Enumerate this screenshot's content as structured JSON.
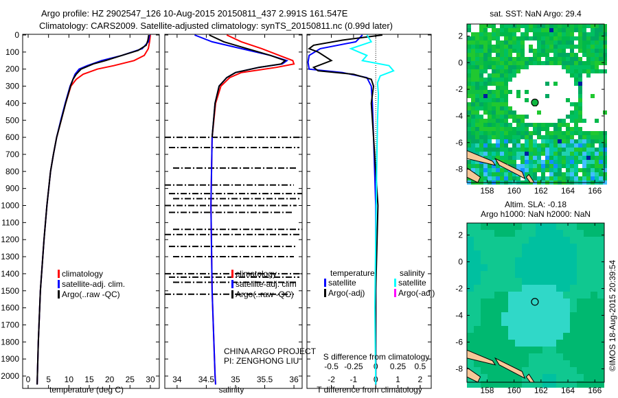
{
  "title_line1": "Argo profile: HZ 2902547_126 10-Aug-2015 20150811_437 2.991S 161.547E",
  "title_line2": "Climatology: CARS2009. Satellite-adjusted climatology: synTS_20150811.nc (0.99d later)",
  "credit": "©IMOS 18-Aug-2015 20:39:54",
  "project_line1": "CHINA ARGO PROJECT",
  "project_line2": "PI: ZENGHONG LIU",
  "colors": {
    "climatology": "#ff0000",
    "satellite": "#0000ff",
    "argo": "#000000",
    "sal_satellite": "#00ffff",
    "sal_argo": "#ff00ff"
  },
  "chart_data": [
    {
      "type": "line",
      "name": "temperature-profile",
      "xlabel": "temperature (deg C)",
      "ylabel": "depth",
      "xticks": [
        "0",
        "5",
        "10",
        "15",
        "20",
        "25",
        "30"
      ],
      "xtick_values": [
        0,
        5,
        10,
        15,
        20,
        25,
        30
      ],
      "yticks": [
        "0",
        "100",
        "200",
        "300",
        "400",
        "500",
        "600",
        "700",
        "800",
        "900",
        "1000",
        "1100",
        "1200",
        "1300",
        "1400",
        "1500",
        "1600",
        "1700",
        "1800",
        "1900",
        "2000"
      ],
      "ytick_values": [
        0,
        100,
        200,
        300,
        400,
        500,
        600,
        700,
        800,
        900,
        1000,
        1100,
        1200,
        1300,
        1400,
        1500,
        1600,
        1700,
        1800,
        1900,
        2000
      ],
      "xlim": [
        -1.35,
        32.2
      ],
      "ylim": [
        2072,
        0
      ],
      "legend": [
        "climatology",
        "satellite-adj. clim.",
        "Argo(..raw -QC)"
      ],
      "legend_placement": "lower-left",
      "series": [
        {
          "name": "climatology",
          "color": "#ff0000",
          "depth": [
            0,
            40,
            80,
            120,
            150,
            180,
            200,
            230,
            260,
            300,
            400,
            500,
            600,
            700,
            800,
            1000,
            1200,
            1500,
            1800,
            2050
          ],
          "values": [
            30,
            29.8,
            29.5,
            28.5,
            26,
            21,
            17,
            13.5,
            11.8,
            10.5,
            9.2,
            8.1,
            7,
            6.2,
            5.5,
            4.6,
            3.9,
            3,
            2.5,
            2.2
          ]
        },
        {
          "name": "satellite-adj. clim.",
          "color": "#0000ff",
          "depth": [
            0,
            40,
            80,
            120,
            150,
            180,
            200,
            230,
            260,
            300,
            400,
            500,
            600,
            700,
            800,
            1000,
            1200,
            1500,
            1800,
            2050
          ],
          "values": [
            29.8,
            29.5,
            28,
            23,
            18,
            14.5,
            12.5,
            11.5,
            11,
            10.3,
            9.1,
            8,
            7,
            6.2,
            5.5,
            4.6,
            3.9,
            3,
            2.5,
            2.2
          ]
        },
        {
          "name": "Argo(..raw -QC)",
          "color": "#000000",
          "depth": [
            0,
            30,
            60,
            90,
            120,
            150,
            170,
            200,
            230,
            260,
            300,
            400,
            500,
            600,
            700,
            800,
            1000,
            1200,
            1500,
            1800,
            2050
          ],
          "values": [
            29.6,
            29.4,
            29,
            27,
            23,
            19,
            16,
            13,
            11.8,
            11,
            10.4,
            9.2,
            8.1,
            7,
            6.2,
            5.5,
            4.6,
            3.9,
            3,
            2.5,
            2.2
          ]
        }
      ]
    },
    {
      "type": "line",
      "name": "salinity-profile",
      "xlabel": "salinity",
      "xticks": [
        "34",
        "34.5",
        "35",
        "35.5",
        "36"
      ],
      "xtick_values": [
        34,
        34.5,
        35,
        35.5,
        36
      ],
      "xlim": [
        33.79,
        36.14
      ],
      "ylim": [
        2072,
        0
      ],
      "legend": [
        "climatology",
        "satellite-adj. clim",
        "Argo(..raw -QC)"
      ],
      "legend_placement": "lower-left",
      "series": [
        {
          "name": "climatology",
          "color": "#ff0000",
          "depth": [
            0,
            40,
            80,
            120,
            150,
            170,
            190,
            220,
            250,
            300,
            400,
            600,
            1000,
            1500,
            2000,
            2050
          ],
          "values": [
            34.85,
            35.1,
            35.45,
            35.75,
            35.98,
            36.0,
            35.7,
            35.1,
            34.9,
            34.75,
            34.66,
            34.6,
            34.58,
            34.6,
            34.65,
            34.66
          ]
        },
        {
          "name": "satellite-adj. clim",
          "color": "#0000ff",
          "depth": [
            0,
            40,
            80,
            120,
            150,
            170,
            190,
            220,
            250,
            300,
            400,
            600,
            1000,
            1500,
            2000,
            2050
          ],
          "values": [
            34.3,
            34.6,
            35.1,
            35.6,
            35.88,
            35.8,
            35.4,
            35.0,
            34.85,
            34.72,
            34.65,
            34.6,
            34.58,
            34.6,
            34.65,
            34.66
          ]
        },
        {
          "name": "Argo(..raw -QC)",
          "color": "#000000",
          "depth": [
            0,
            40,
            80,
            120,
            150,
            170,
            190,
            220,
            250,
            300,
            400,
            600
          ],
          "values": [
            34.55,
            34.8,
            35.2,
            35.6,
            35.85,
            35.78,
            35.4,
            35.0,
            34.85,
            34.72,
            34.65,
            34.6
          ]
        }
      ],
      "argo_raw_flagged_depths": [
        600,
        660,
        780,
        880,
        930,
        960,
        1000,
        1040,
        1140,
        1170,
        1240,
        1300,
        1400,
        1420,
        1450,
        1520
      ]
    },
    {
      "type": "line",
      "name": "difference-profile",
      "xlabel": "T difference from climatology",
      "x2label": "S difference from climatology",
      "xticks": [
        "-2",
        "-1",
        "0",
        "1",
        "2"
      ],
      "xtick_values": [
        -2,
        -1,
        0,
        1,
        2
      ],
      "x2ticks": [
        "-0.5",
        "-0.25",
        "0",
        "0.25",
        "0.5"
      ],
      "x2tick_values": [
        -0.5,
        -0.25,
        0,
        0.25,
        0.5
      ],
      "xlim": [
        -3.1,
        2.5
      ],
      "x2lim": [
        -0.775,
        0.625
      ],
      "ylim": [
        2072,
        0
      ],
      "legend": [
        "temperature",
        "salinity",
        "satellite",
        "satellite",
        "Argo(-adj)",
        "Argo(-adj)"
      ],
      "legend_placement": "lower-center",
      "series": [
        {
          "name": "T satellite",
          "color": "#0000ff",
          "depth": [
            0,
            40,
            80,
            120,
            160,
            200,
            220,
            250,
            300,
            400,
            600,
            800,
            1000,
            1500,
            2050
          ],
          "values": [
            -0.6,
            -0.9,
            -2.5,
            -3.0,
            -3.05,
            -3.0,
            -1.5,
            -0.4,
            -0.2,
            -0.15,
            -0.1,
            -0.05,
            0,
            0,
            0
          ]
        },
        {
          "name": "T Argo(-adj)",
          "color": "#000000",
          "depth": [
            0,
            30,
            60,
            80,
            100,
            150,
            190,
            210,
            230,
            260,
            300,
            400,
            600,
            800,
            1000,
            1500,
            2050
          ],
          "values": [
            0.3,
            -1.5,
            -2.8,
            -3.0,
            -2.6,
            -2.0,
            -2.8,
            -2.6,
            -1.0,
            -0.2,
            -0.1,
            -0.2,
            -0.1,
            0,
            0.1,
            0,
            0
          ]
        },
        {
          "name": "S satellite",
          "color": "#00ffff",
          "depth": [
            0,
            40,
            80,
            120,
            150,
            180,
            210,
            240,
            280,
            350,
            500,
            800,
            1200,
            1600,
            2050
          ],
          "values": [
            -0.1,
            -0.05,
            -0.28,
            -0.1,
            -0.15,
            0.15,
            0.2,
            0.05,
            0.02,
            0.03,
            0.02,
            0.01,
            0,
            -0.01,
            0
          ]
        },
        {
          "name": "S Argo(-adj)",
          "color": "#ff00ff",
          "depth": [],
          "values": []
        }
      ]
    },
    {
      "type": "heatmap",
      "name": "sst-map",
      "title": "sat. SST: NaN Argo: 29.4",
      "xticks": [
        "158",
        "160",
        "162",
        "164",
        "166"
      ],
      "xtick_values": [
        158,
        160,
        162,
        164,
        166
      ],
      "yticks": [
        "2",
        "0",
        "-2",
        "-4",
        "-6",
        "-8"
      ],
      "ytick_values": [
        2,
        0,
        -2,
        -4,
        -6,
        -8
      ],
      "xlim": [
        156.5,
        166.7
      ],
      "ylim": [
        -9,
        2.9
      ],
      "marker": {
        "lon": 161.547,
        "lat": -2.991
      }
    },
    {
      "type": "heatmap",
      "name": "sla-map",
      "title_line1": "Altim. SLA: -0.18",
      "title_line2": "Argo h1000: NaN h2000: NaN",
      "xticks": [
        "158",
        "160",
        "162",
        "164",
        "166"
      ],
      "xtick_values": [
        158,
        160,
        162,
        164,
        166
      ],
      "yticks": [
        "2",
        "0",
        "-2",
        "-4",
        "-6",
        "-8"
      ],
      "ytick_values": [
        2,
        0,
        -2,
        -4,
        -6,
        -8
      ],
      "xlim": [
        156.5,
        166.7
      ],
      "ylim": [
        -9,
        2.9
      ],
      "marker": {
        "lon": 161.547,
        "lat": -2.991
      }
    }
  ]
}
